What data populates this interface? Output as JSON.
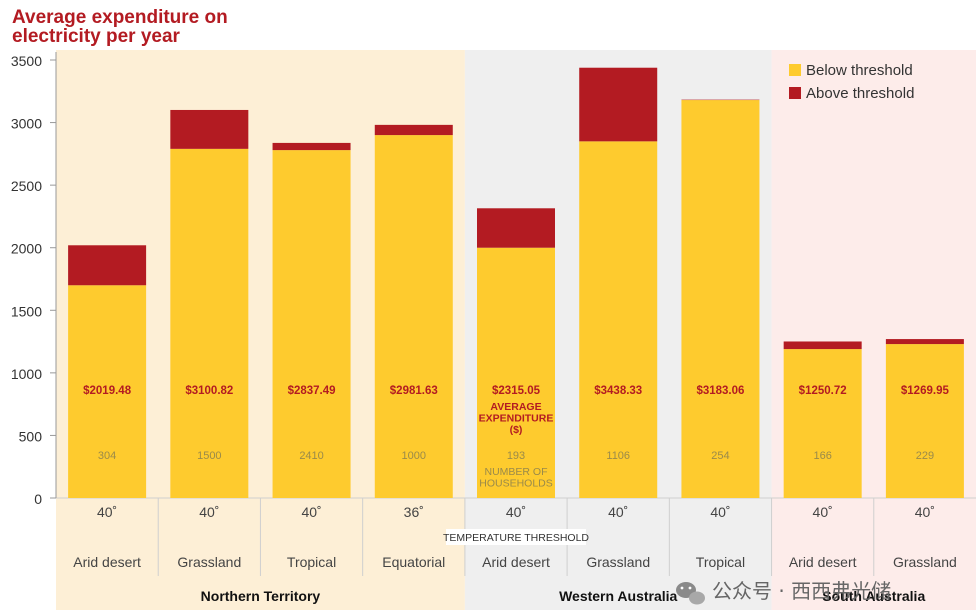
{
  "chart_data": {
    "type": "bar",
    "stacked": true,
    "title": "Average expenditure on electricity per year",
    "ylim": [
      0,
      3500
    ],
    "yticks": [
      0,
      500,
      1000,
      1500,
      2000,
      2500,
      3000,
      3500
    ],
    "grid": false,
    "legend_position": "top-right",
    "series": [
      {
        "name": "Below threshold",
        "color": "#fecb2e",
        "values": [
          1700,
          2790,
          2780,
          2900,
          2000,
          2850,
          3180,
          1190,
          1230
        ]
      },
      {
        "name": "Above threshold",
        "color": "#b31b22",
        "values": [
          319.48,
          310.82,
          57.49,
          81.63,
          315.05,
          588.33,
          3.06,
          60.72,
          39.95
        ]
      }
    ],
    "bars": [
      {
        "region": "Northern Territory",
        "climate": "Arid desert",
        "temperature": "40˚",
        "total_label": "$2019.48",
        "households": "304"
      },
      {
        "region": "Northern Territory",
        "climate": "Grassland",
        "temperature": "40˚",
        "total_label": "$3100.82",
        "households": "1500"
      },
      {
        "region": "Northern Territory",
        "climate": "Tropical",
        "temperature": "40˚",
        "total_label": "$2837.49",
        "households": "2410"
      },
      {
        "region": "Northern Territory",
        "climate": "Equatorial",
        "temperature": "36˚",
        "total_label": "$2981.63",
        "households": "1000"
      },
      {
        "region": "Western Australia",
        "climate": "Arid desert",
        "temperature": "40˚",
        "total_label": "$2315.05",
        "households": "193"
      },
      {
        "region": "Western Australia",
        "climate": "Grassland",
        "temperature": "40˚",
        "total_label": "$3438.33",
        "households": "1106"
      },
      {
        "region": "Western Australia",
        "climate": "Tropical",
        "temperature": "40˚",
        "total_label": "$3183.06",
        "households": "254"
      },
      {
        "region": "South Australia",
        "climate": "Arid desert",
        "temperature": "40˚",
        "total_label": "$1250.72",
        "households": "166"
      },
      {
        "region": "South Australia",
        "climate": "Grassland",
        "temperature": "40˚",
        "total_label": "$1269.95",
        "households": "229"
      }
    ],
    "regions": [
      {
        "name": "Northern Territory",
        "bar_indices": [
          0,
          1,
          2,
          3
        ],
        "background": "#fdefd6"
      },
      {
        "name": "Western Australia",
        "bar_indices": [
          4,
          5,
          6
        ],
        "background": "#efefef"
      },
      {
        "name": "South Australia",
        "bar_indices": [
          7,
          8
        ],
        "background": "#fdecea"
      }
    ],
    "annotations": {
      "average_expenditure": [
        "AVERAGE",
        "EXPENDITURE",
        "($)"
      ],
      "number_of_households": [
        "NUMBER OF",
        "HOUSEHOLDS"
      ],
      "temperature_threshold": "TEMPERATURE THRESHOLD"
    }
  },
  "title_lines": [
    "Average expenditure on",
    "electricity per year"
  ],
  "watermark": "公众号 · 西西弗光储"
}
